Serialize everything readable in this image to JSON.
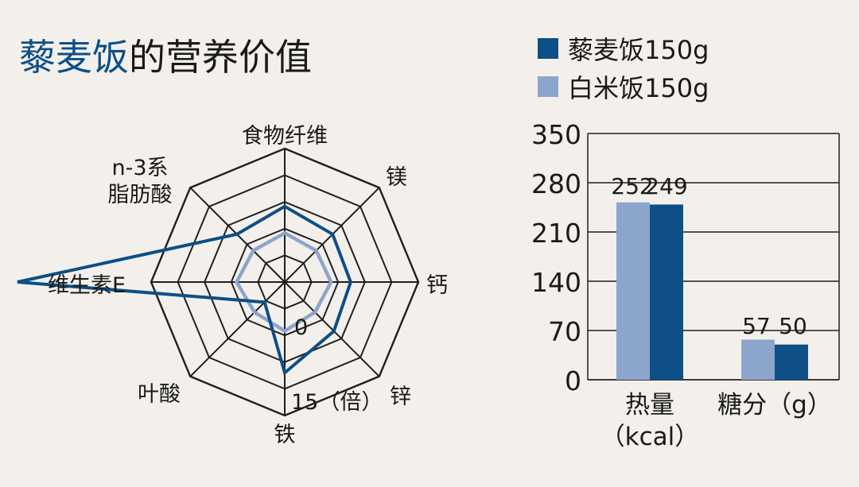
{
  "title": {
    "highlight": "藜麦饭",
    "rest": "的营养价值"
  },
  "colors": {
    "quinoa": "#0d4f86",
    "rice": "#8ca5cc",
    "text": "#1a1a1a",
    "background": "#f3f0eb"
  },
  "chart_data": [
    {
      "type": "radar",
      "axes": [
        "食物纤维",
        "镁",
        "钙",
        "锌",
        "铁",
        "叶酸",
        "维生素E",
        "n-3系 脂肪酸"
      ],
      "axis_label_lines": [
        [
          "食物纤维"
        ],
        [
          "镁"
        ],
        [
          "钙"
        ],
        [
          "锌"
        ],
        [
          "铁"
        ],
        [
          "叶酸"
        ],
        [
          "维生素E"
        ],
        [
          "n-3系",
          "脂肪酸"
        ]
      ],
      "scale_labels": {
        "min": "0",
        "max": "15（倍）"
      },
      "range": [
        0,
        15
      ],
      "grid_rings": 5,
      "series": [
        {
          "name": "藜麦饭150g",
          "values": [
            8.5,
            7.6,
            7.4,
            7.8,
            10.2,
            3.2,
            30,
            7.6
          ]
        },
        {
          "name": "白米饭150g",
          "values": [
            5.5,
            5.0,
            5.2,
            4.8,
            5.5,
            4.8,
            5.4,
            5.0
          ]
        }
      ]
    },
    {
      "type": "bar",
      "categories": [
        "热量（kcal）",
        "糖分（g）"
      ],
      "category_label_lines": [
        [
          "热量",
          "（kcal）"
        ],
        [
          "糖分（g）"
        ]
      ],
      "series": [
        {
          "name": "藜麦饭150g",
          "values": [
            249,
            50
          ]
        },
        {
          "name": "白米饭150g",
          "values": [
            252,
            57
          ]
        }
      ],
      "data_labels": [
        [
          "252",
          "249"
        ],
        [
          "57",
          "50"
        ]
      ],
      "ylim": [
        0,
        350
      ],
      "yticks": [
        0,
        70,
        140,
        210,
        280,
        350
      ],
      "grid": true,
      "legend": {
        "position": "top-right",
        "entries": [
          "藜麦饭150g",
          "白米饭150g"
        ]
      }
    }
  ]
}
